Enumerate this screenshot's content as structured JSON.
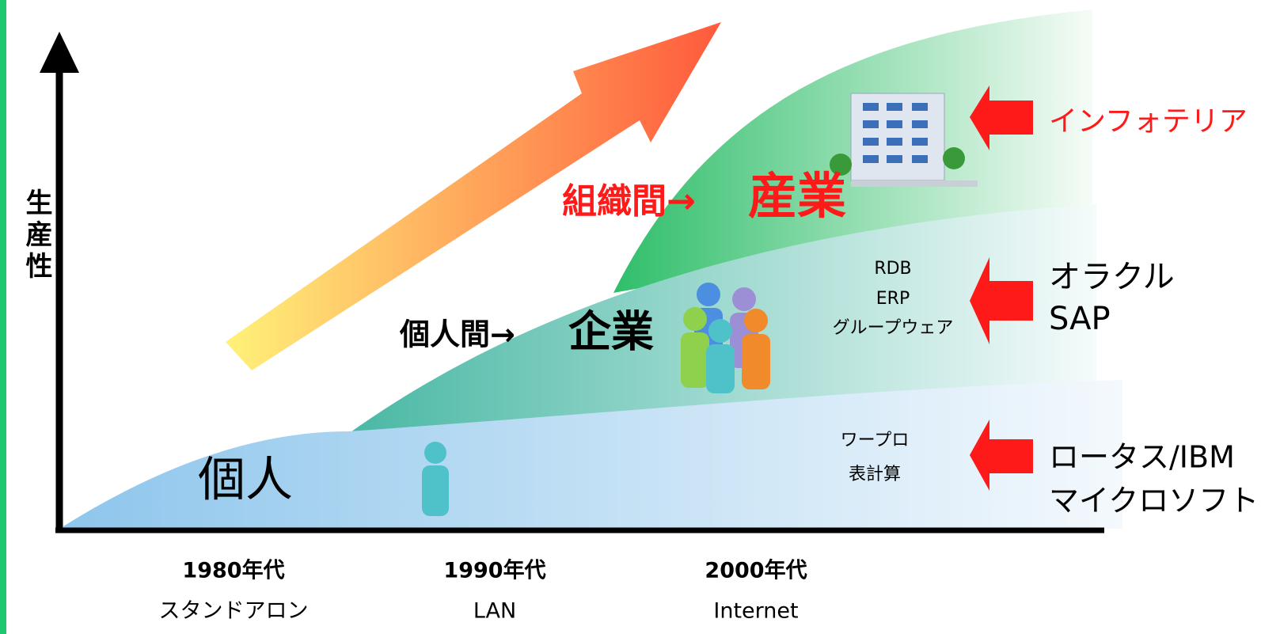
{
  "y_axis_label": "生産性",
  "levels": [
    {
      "label": "個人",
      "tools": [
        "ワープロ",
        "表計算"
      ],
      "vendors": [
        "ロータス/IBM",
        "マイクロソフト"
      ]
    },
    {
      "label_prefix": "個人間→",
      "label_main": "企業",
      "tools": [
        "RDB",
        "ERP",
        "グループウェア"
      ],
      "vendors": [
        "オラクル",
        "SAP"
      ]
    },
    {
      "label_prefix": "組織間→",
      "label_main": "産業",
      "vendors": [
        "インフォテリア"
      ]
    }
  ],
  "eras": [
    {
      "period": "1980年代",
      "tech": "スタンドアロン"
    },
    {
      "period": "1990年代",
      "tech": "LAN"
    },
    {
      "period": "2000年代",
      "tech": "Internet"
    }
  ]
}
